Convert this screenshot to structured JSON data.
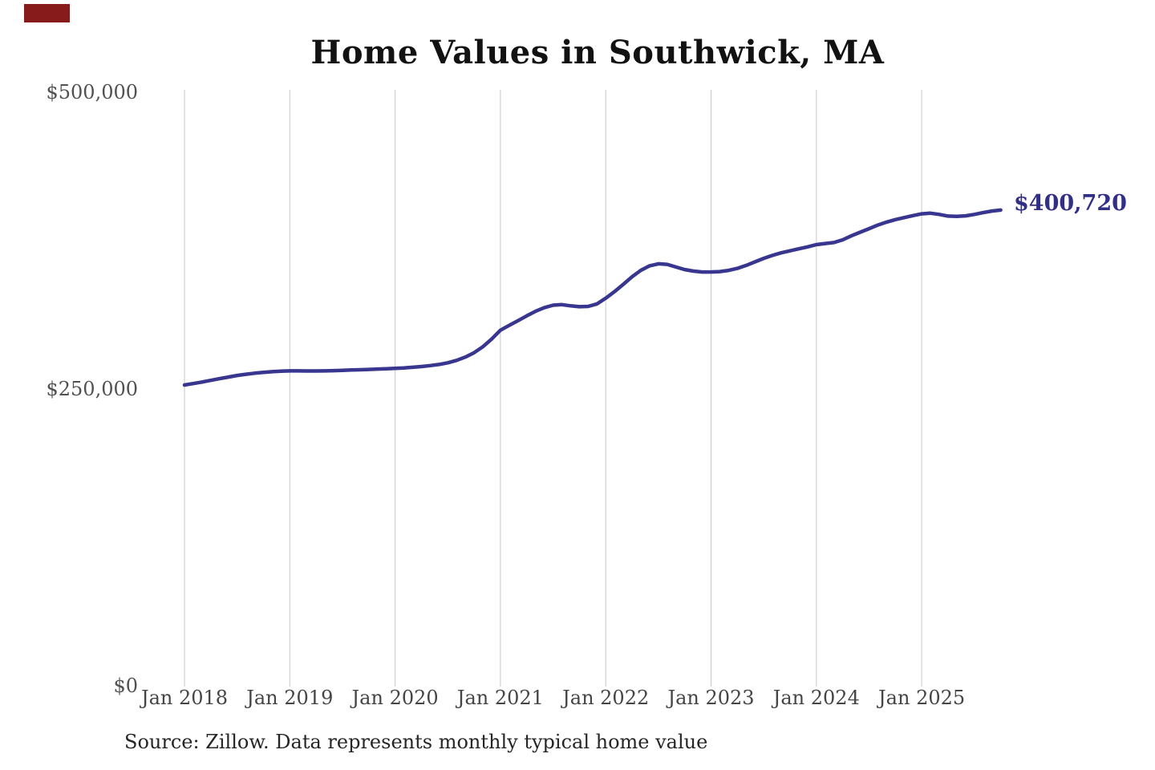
{
  "title": "Home Values in Southwick, MA",
  "end_label": "$400,720",
  "source_note": "Source: Zillow. Data represents monthly typical home value",
  "colors": {
    "line": "#38368f",
    "end_label": "#322f86",
    "gridline": "#c9c9c9",
    "y_axis_label": "#515153",
    "x_axis_label": "#454547",
    "title": "#121212",
    "source": "#262626",
    "corner_marker": "#871a1a",
    "background": "#ffffff"
  },
  "chart_data": {
    "type": "line",
    "title": "Home Values in Southwick, MA",
    "xlabel": "",
    "ylabel": "",
    "ylim": [
      0,
      500000
    ],
    "y_ticks": [
      500000,
      250000,
      0
    ],
    "y_tick_labels": [
      "$500,000",
      "$250,000",
      "$0"
    ],
    "x_tick_labels": [
      "Jan 2018",
      "Jan 2019",
      "Jan 2020",
      "Jan 2021",
      "Jan 2022",
      "Jan 2023",
      "Jan 2024",
      "Jan 2025"
    ],
    "cadence": "monthly",
    "x_start_label": "Jan 2018",
    "grid": "vertical-only",
    "legend": "none",
    "annotation_end_value": 400720,
    "series": [
      {
        "name": "Typical home value",
        "values": [
          253400,
          254600,
          255900,
          257300,
          258700,
          260100,
          261400,
          262400,
          263300,
          264000,
          264600,
          265000,
          265300,
          265300,
          265200,
          265200,
          265300,
          265500,
          265700,
          266000,
          266200,
          266500,
          266800,
          267100,
          267400,
          267800,
          268300,
          268900,
          269700,
          270700,
          272100,
          274100,
          276900,
          280600,
          285600,
          292100,
          299500,
          303600,
          307600,
          311600,
          315500,
          318500,
          320600,
          321100,
          320100,
          319300,
          319600,
          321700,
          326500,
          332000,
          338200,
          344500,
          350000,
          353800,
          355500,
          355000,
          352800,
          350600,
          349300,
          348600,
          348600,
          348900,
          349900,
          351600,
          354100,
          357100,
          360100,
          362600,
          364700,
          366400,
          368100,
          369700,
          371600,
          372600,
          373400,
          375700,
          379100,
          382100,
          385100,
          388100,
          390600,
          392700,
          394400,
          396100,
          397600,
          398100,
          397100,
          395700,
          395400,
          395900,
          397100,
          398600,
          399900,
          400720
        ]
      }
    ]
  }
}
